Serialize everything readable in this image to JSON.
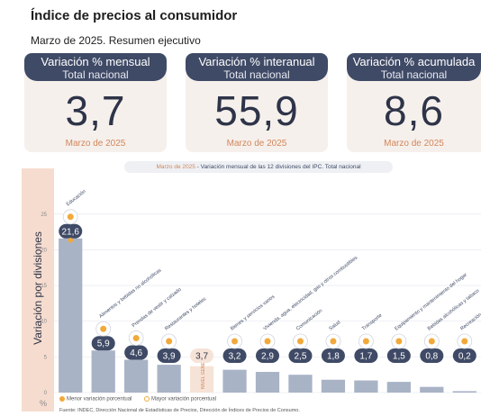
{
  "page": {
    "title": "Índice de precios al consumidor",
    "subtitle": "Marzo de 2025. Resumen ejecutivo"
  },
  "kpis": [
    {
      "label": "Variación % mensual",
      "scope": "Total nacional",
      "value": "3,7",
      "date": "Marzo de 2025"
    },
    {
      "label": "Variación % interanual",
      "scope": "Total nacional",
      "value": "55,9",
      "date": "Marzo de 2025"
    },
    {
      "label": "Variación % acumulada",
      "scope": "Total nacional",
      "value": "8,6",
      "date": "Marzo de 2025"
    }
  ],
  "chart": {
    "header_date": "Marzo de 2025",
    "header_text": " - Variación mensual de las 12 divisiones del IPC. Total nacional",
    "side_label": "Variación por divisiones",
    "pct_symbol": "%",
    "legend_min": "Menor variación porcentual",
    "legend_max": "Mayor variación porcentual",
    "source": "Fuente: INDEC, Dirección Nacional de Estadísticas de Precios, Dirección de Índices de Precios de Consumo.",
    "colors": {
      "bar": "#a9b3c6",
      "badge": "#3f4a66",
      "accent": "#f2a93b",
      "general": "#f6e3d7"
    }
  },
  "chart_data": {
    "type": "bar",
    "categories": [
      "Educación",
      "Alimentos y bebidas no alcohólicas",
      "Prendas de vestir y calzado",
      "Restaurantes y hoteles",
      "NIVEL GENERAL",
      "Bienes y servicios varios",
      "Vivienda, agua, electricidad, gas y otros combustibles",
      "Comunicación",
      "Salud",
      "Transporte",
      "Equipamiento y mantenimiento del hogar",
      "Bebidas alcohólicas y tabaco",
      "Recreación y cultura"
    ],
    "values": [
      21.6,
      5.9,
      4.6,
      3.9,
      3.7,
      3.2,
      2.9,
      2.5,
      1.8,
      1.7,
      1.5,
      0.8,
      0.2
    ],
    "value_labels": [
      "21,6",
      "5,9",
      "4,6",
      "3,9",
      "3,7",
      "3,2",
      "2,9",
      "2,5",
      "1,8",
      "1,7",
      "1,5",
      "0,8",
      "0,2"
    ],
    "icons": [
      "book-icon",
      "food-icon",
      "clothes-icon",
      "restaurant-icon",
      "",
      "scissors-icon",
      "bulb-icon",
      "phone-icon",
      "health-icon",
      "bus-icon",
      "house-icon",
      "bottle-icon",
      "umbrella-icon"
    ],
    "yticks": [
      0,
      5,
      10,
      15,
      20,
      25
    ],
    "ylim": [
      0,
      27
    ],
    "grid": true,
    "max_index": 0,
    "min_index": 12
  }
}
